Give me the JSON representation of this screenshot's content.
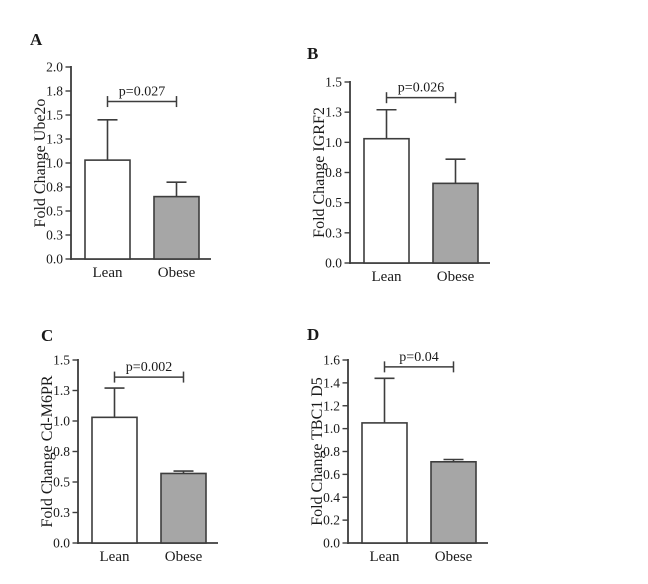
{
  "figure": {
    "background": "#ffffff",
    "colors": {
      "lean_bar_fill": "#ffffff",
      "obese_bar_fill": "#a6a6a6",
      "bar_border": "#3d3d3d",
      "axis": "#3d3d3d",
      "text": "#1a1a1a"
    }
  },
  "chart_data": [
    {
      "type": "bar",
      "panel_label": "A",
      "ylabel": "Fold Change Ube2o",
      "categories": [
        "Lean",
        "Obese"
      ],
      "values": [
        1.03,
        0.65
      ],
      "errors_upper_to": [
        1.45,
        0.8
      ],
      "p_label": "p=0.027",
      "ylim": [
        0,
        2.0
      ],
      "ytick_values": [
        0,
        0.25,
        0.5,
        0.75,
        1.0,
        1.25,
        1.5,
        1.75,
        2.0
      ],
      "ytick_labels": [
        "0.0",
        "0.3",
        "0.5",
        "0.8",
        "1.0",
        "1.3",
        "1.5",
        "1.8",
        "2.0"
      ],
      "bracket_y_value": 1.64,
      "grid": false,
      "legend": "none"
    },
    {
      "type": "bar",
      "panel_label": "B",
      "ylabel": "Fold Change IGRF2",
      "categories": [
        "Lean",
        "Obese"
      ],
      "values": [
        1.03,
        0.66
      ],
      "errors_upper_to": [
        1.27,
        0.86
      ],
      "p_label": "p=0.026",
      "ylim": [
        0,
        1.5
      ],
      "ytick_values": [
        0,
        0.25,
        0.5,
        0.75,
        1.0,
        1.25,
        1.5
      ],
      "ytick_labels": [
        "0.0",
        "0.3",
        "0.5",
        "0.8",
        "1.0",
        "1.3",
        "1.5"
      ],
      "bracket_y_value": 1.37,
      "grid": false,
      "legend": "none"
    },
    {
      "type": "bar",
      "panel_label": "C",
      "ylabel": "Fold Change Cd-M6PR",
      "categories": [
        "Lean",
        "Obese"
      ],
      "values": [
        1.03,
        0.57
      ],
      "errors_upper_to": [
        1.27,
        0.59
      ],
      "p_label": "p=0.002",
      "ylim": [
        0,
        1.5
      ],
      "ytick_values": [
        0,
        0.25,
        0.5,
        0.75,
        1.0,
        1.25,
        1.5
      ],
      "ytick_labels": [
        "0.0",
        "0.3",
        "0.5",
        "0.8",
        "1.0",
        "1.3",
        "1.5"
      ],
      "bracket_y_value": 1.36,
      "grid": false,
      "legend": "none"
    },
    {
      "type": "bar",
      "panel_label": "D",
      "ylabel": "Fold Change TBC1 D5",
      "categories": [
        "Lean",
        "Obese"
      ],
      "values": [
        1.05,
        0.71
      ],
      "errors_upper_to": [
        1.44,
        0.73
      ],
      "p_label": "p=0.04",
      "ylim": [
        0,
        1.6
      ],
      "ytick_values": [
        0,
        0.2,
        0.4,
        0.6,
        0.8,
        1.0,
        1.2,
        1.4,
        1.6
      ],
      "ytick_labels": [
        "0.0",
        "0.2",
        "0.4",
        "0.6",
        "0.8",
        "1.0",
        "1.2",
        "1.4",
        "1.6"
      ],
      "bracket_y_value": 1.54,
      "grid": false,
      "legend": "none"
    }
  ]
}
